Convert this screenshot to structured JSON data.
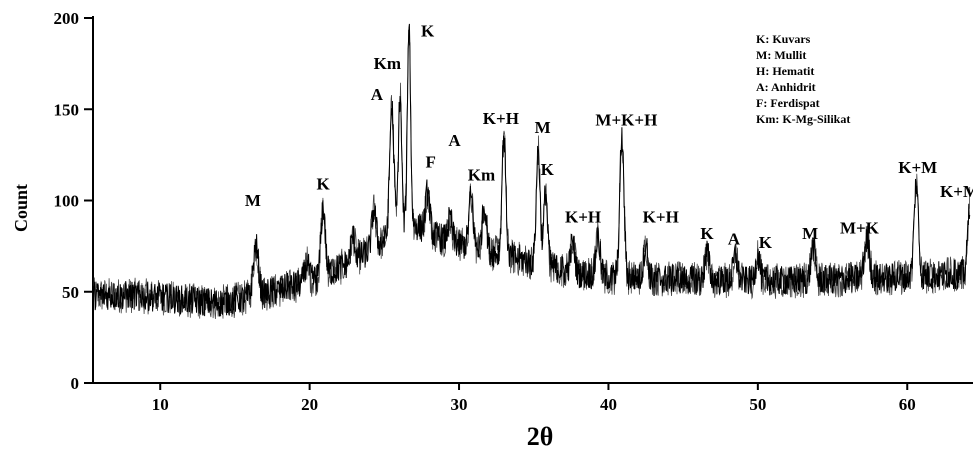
{
  "chart_data": {
    "type": "line",
    "xlabel": "2θ",
    "ylabel": "Count",
    "xlim": [
      5.5,
      64.2
    ],
    "ylim": [
      0,
      200
    ],
    "x_ticks": [
      10,
      20,
      30,
      40,
      50,
      60
    ],
    "y_ticks": [
      0,
      50,
      100,
      150,
      200
    ],
    "legend_position": "top-right",
    "legend": [
      "K: Kuvars",
      "M: Mullit",
      "H: Hematit",
      "A: Anhidrit",
      "F: Ferdispat",
      "Km: K-Mg-Silikat"
    ],
    "baseline": [
      [
        5.5,
        48
      ],
      [
        8,
        48
      ],
      [
        10,
        47
      ],
      [
        12,
        45
      ],
      [
        14,
        44
      ],
      [
        16,
        47
      ],
      [
        18,
        51
      ],
      [
        20,
        56
      ],
      [
        22,
        63
      ],
      [
        24,
        72
      ],
      [
        25,
        78
      ],
      [
        26,
        85
      ],
      [
        27,
        87
      ],
      [
        28,
        82
      ],
      [
        30,
        76
      ],
      [
        32,
        72
      ],
      [
        34,
        68
      ],
      [
        36,
        64
      ],
      [
        38,
        60
      ],
      [
        40,
        58
      ],
      [
        44,
        57
      ],
      [
        48,
        56
      ],
      [
        52,
        56
      ],
      [
        56,
        57
      ],
      [
        60,
        58
      ],
      [
        64.2,
        60
      ]
    ],
    "peaks": [
      {
        "x": 16.4,
        "y": 75,
        "w": 0.25
      },
      {
        "x": 19.8,
        "y": 66,
        "w": 0.2
      },
      {
        "x": 20.9,
        "y": 96,
        "w": 0.2
      },
      {
        "x": 22.9,
        "y": 80,
        "w": 0.2
      },
      {
        "x": 24.3,
        "y": 95,
        "w": 0.2
      },
      {
        "x": 25.5,
        "y": 151,
        "w": 0.2
      },
      {
        "x": 26.05,
        "y": 158,
        "w": 0.15
      },
      {
        "x": 26.65,
        "y": 197,
        "w": 0.15
      },
      {
        "x": 27.9,
        "y": 105,
        "w": 0.2
      },
      {
        "x": 29.4,
        "y": 90,
        "w": 0.2
      },
      {
        "x": 30.8,
        "y": 102,
        "w": 0.2
      },
      {
        "x": 31.7,
        "y": 98,
        "w": 0.2
      },
      {
        "x": 33.0,
        "y": 136,
        "w": 0.18
      },
      {
        "x": 35.3,
        "y": 128,
        "w": 0.18
      },
      {
        "x": 35.8,
        "y": 105,
        "w": 0.18
      },
      {
        "x": 37.6,
        "y": 77,
        "w": 0.2
      },
      {
        "x": 39.3,
        "y": 80,
        "w": 0.2
      },
      {
        "x": 40.9,
        "y": 134,
        "w": 0.2
      },
      {
        "x": 42.5,
        "y": 76,
        "w": 0.2
      },
      {
        "x": 46.6,
        "y": 72,
        "w": 0.2
      },
      {
        "x": 48.5,
        "y": 70,
        "w": 0.2
      },
      {
        "x": 50.0,
        "y": 70,
        "w": 0.2
      },
      {
        "x": 53.7,
        "y": 75,
        "w": 0.2
      },
      {
        "x": 57.3,
        "y": 79,
        "w": 0.25
      },
      {
        "x": 60.6,
        "y": 110,
        "w": 0.2
      },
      {
        "x": 64.2,
        "y": 100,
        "w": 0.2
      }
    ],
    "noise_amplitude": 9,
    "annotations": [
      {
        "text": "M",
        "x": 16.2,
        "y": 97
      },
      {
        "text": "K",
        "x": 20.9,
        "y": 106
      },
      {
        "text": "Km",
        "x": 25.2,
        "y": 172
      },
      {
        "text": "A",
        "x": 24.5,
        "y": 155
      },
      {
        "text": "K",
        "x": 27.9,
        "y": 190
      },
      {
        "text": "F",
        "x": 28.1,
        "y": 118
      },
      {
        "text": "A",
        "x": 29.7,
        "y": 130
      },
      {
        "text": "Km",
        "x": 31.5,
        "y": 111
      },
      {
        "text": "K+H",
        "x": 32.8,
        "y": 142
      },
      {
        "text": "M",
        "x": 35.6,
        "y": 137
      },
      {
        "text": "K",
        "x": 35.9,
        "y": 114
      },
      {
        "text": "K+H",
        "x": 38.3,
        "y": 88
      },
      {
        "text": "M+K+H",
        "x": 41.2,
        "y": 141
      },
      {
        "text": "K+H",
        "x": 43.5,
        "y": 88
      },
      {
        "text": "K",
        "x": 46.6,
        "y": 79
      },
      {
        "text": "A",
        "x": 48.4,
        "y": 76
      },
      {
        "text": "K",
        "x": 50.5,
        "y": 74
      },
      {
        "text": "M",
        "x": 53.5,
        "y": 79
      },
      {
        "text": "M+K",
        "x": 56.8,
        "y": 82
      },
      {
        "text": "K+M",
        "x": 60.7,
        "y": 115
      },
      {
        "text": "K+M",
        "x": 63.5,
        "y": 102
      }
    ]
  }
}
